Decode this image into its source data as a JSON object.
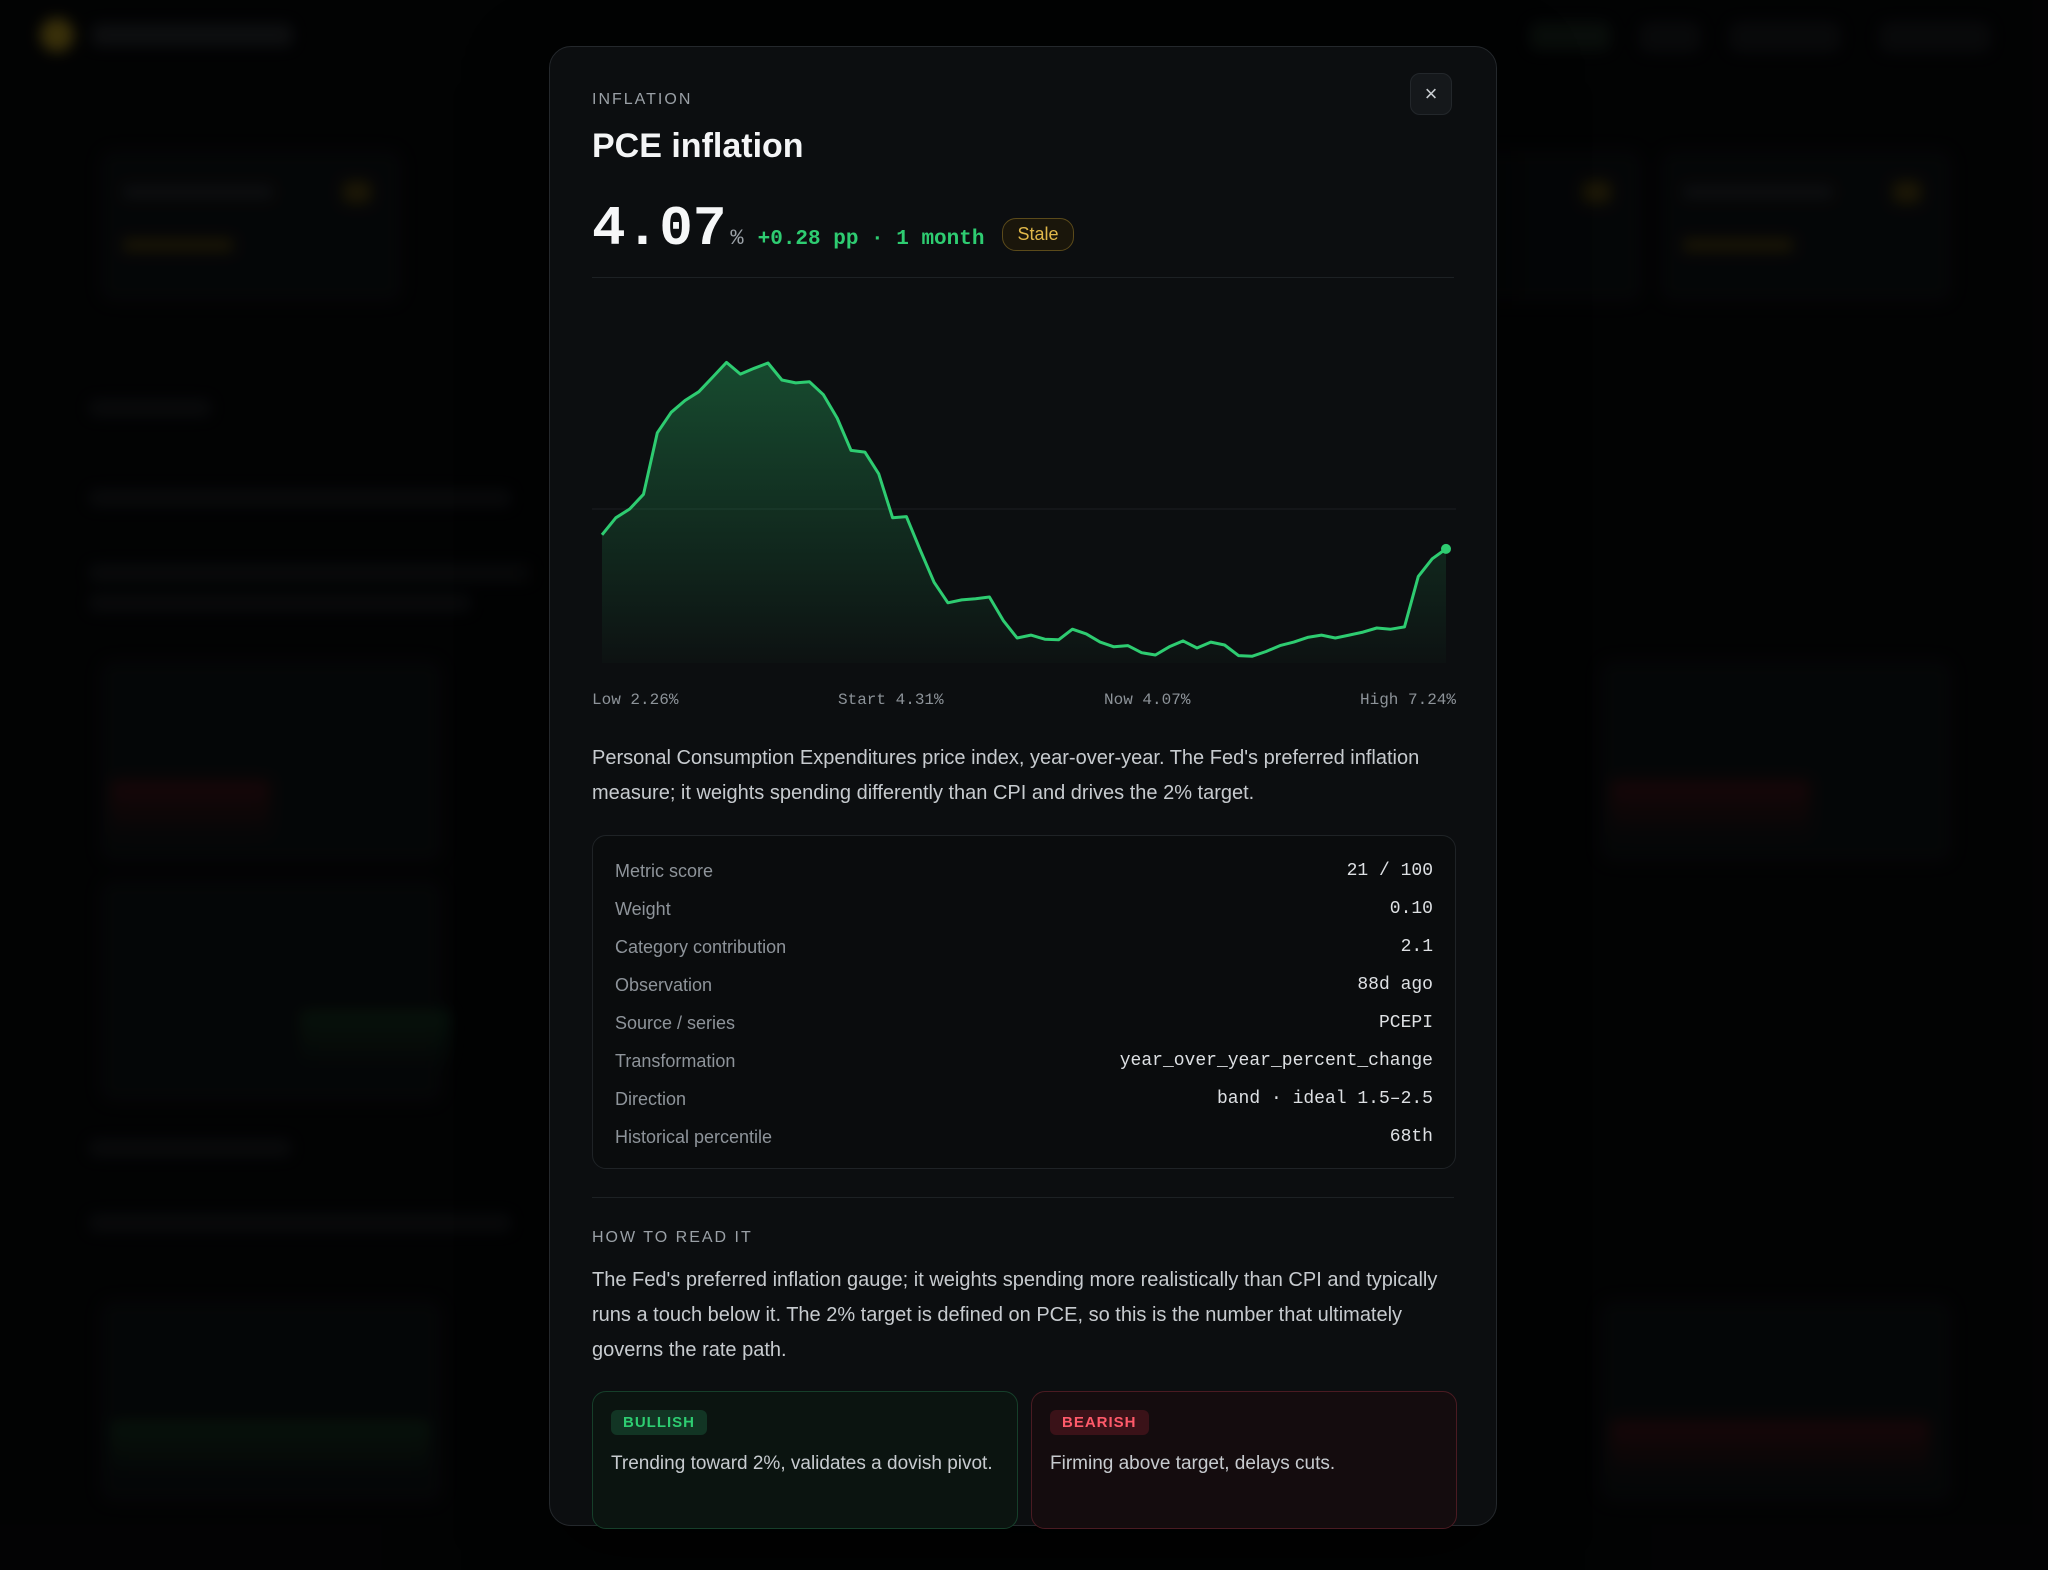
{
  "modal": {
    "eyebrow": "INFLATION",
    "title": "PCE inflation",
    "value": "4.07",
    "unit": "%",
    "delta": "+0.28 pp · 1 month",
    "status_badge": "Stale",
    "close_icon": "×",
    "description": "Personal Consumption Expenditures price index, year-over-year. The Fed's preferred inflation measure; it weights spending differently than CPI and drives the 2% target.",
    "stats": [
      {
        "label": "Metric score",
        "value": "21 / 100"
      },
      {
        "label": "Weight",
        "value": "0.10"
      },
      {
        "label": "Category contribution",
        "value": "2.1"
      },
      {
        "label": "Observation",
        "value": "88d ago"
      },
      {
        "label": "Source / series",
        "value": "PCEPI"
      },
      {
        "label": "Transformation",
        "value": "year_over_year_percent_change"
      },
      {
        "label": "Direction",
        "value": "band · ideal 1.5–2.5"
      },
      {
        "label": "Historical percentile",
        "value": "68th"
      }
    ],
    "how_to_read": {
      "label": "HOW TO READ IT",
      "text": "The Fed's preferred inflation gauge; it weights spending more realistically than CPI and typically runs a touch below it. The 2% target is defined on PCE, so this is the number that ultimately governs the rate path."
    },
    "bullish": {
      "tag": "BULLISH",
      "text": "Trending toward 2%, validates a dovish pivot."
    },
    "bearish": {
      "tag": "BEARISH",
      "text": "Firming above target, delays cuts."
    }
  },
  "colors": {
    "accent_green": "#2ecc71",
    "stale_amber": "#e0b84a",
    "bearish_red": "#ff5a6a",
    "background": "#0c0e10"
  },
  "chart_data": {
    "type": "area",
    "legend": {
      "low": "Low 2.26%",
      "start": "Start 4.31%",
      "now": "Now 4.07%",
      "high": "High 7.24%"
    },
    "ylim": [
      2.26,
      7.24
    ],
    "values": [
      4.31,
      4.6,
      4.75,
      5.0,
      6.05,
      6.4,
      6.6,
      6.75,
      7.0,
      7.25,
      7.05,
      7.15,
      7.24,
      6.95,
      6.9,
      6.92,
      6.7,
      6.3,
      5.75,
      5.72,
      5.35,
      4.6,
      4.62,
      4.05,
      3.5,
      3.15,
      3.2,
      3.22,
      3.25,
      2.85,
      2.55,
      2.6,
      2.53,
      2.52,
      2.7,
      2.62,
      2.48,
      2.4,
      2.42,
      2.3,
      2.26,
      2.4,
      2.5,
      2.38,
      2.48,
      2.43,
      2.25,
      2.24,
      2.32,
      2.42,
      2.48,
      2.56,
      2.6,
      2.55,
      2.6,
      2.65,
      2.72,
      2.7,
      2.74,
      3.6,
      3.9,
      4.07
    ]
  }
}
